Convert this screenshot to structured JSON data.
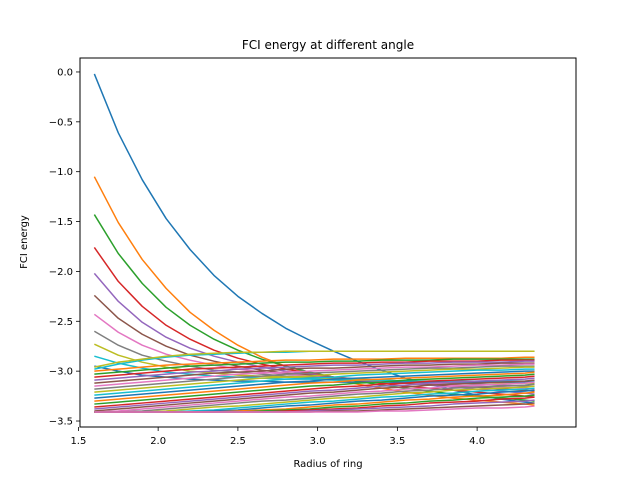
{
  "chart_data": {
    "type": "line",
    "title": "FCI energy at different angle",
    "xlabel": "Radius of ring",
    "ylabel": "FCI energy",
    "xlim": [
      1.51,
      4.62
    ],
    "ylim": [
      -3.56,
      0.14
    ],
    "xticks": [
      1.5,
      2.0,
      2.5,
      3.0,
      3.5,
      4.0
    ],
    "xtick_labels": [
      "1.5",
      "2.0",
      "2.5",
      "3.0",
      "3.5",
      "4.0"
    ],
    "yticks": [
      0.0,
      -0.5,
      -1.0,
      -1.5,
      -2.0,
      -2.5,
      -3.0,
      -3.5
    ],
    "ytick_labels": [
      "0.0",
      "−0.5",
      "−1.0",
      "−1.5",
      "−2.0",
      "−2.5",
      "−3.0",
      "−3.5"
    ],
    "grid": false,
    "x": [
      1.6,
      1.75,
      1.9,
      2.05,
      2.2,
      2.35,
      2.5,
      2.65,
      2.8,
      2.95,
      3.1,
      3.25,
      3.4,
      3.55,
      3.7,
      3.85,
      4.0,
      4.15,
      4.3,
      4.36
    ],
    "series": [
      {
        "values": [
          -0.02,
          -0.61,
          -1.08,
          -1.47,
          -1.78,
          -2.04,
          -2.25,
          -2.42,
          -2.57,
          -2.69,
          -2.8,
          -2.9,
          -2.99,
          -3.07,
          -3.13,
          -3.19,
          -3.24,
          -3.28,
          -3.31,
          -3.32
        ],
        "color": "#1f77b4"
      },
      {
        "values": [
          -1.05,
          -1.51,
          -1.88,
          -2.17,
          -2.41,
          -2.59,
          -2.74,
          -2.86,
          -2.95,
          -3.02,
          -3.08,
          -3.13,
          -3.17,
          -3.21,
          -3.24,
          -3.27,
          -3.29,
          -3.31,
          -3.33,
          -3.34
        ],
        "color": "#ff7f0e"
      },
      {
        "values": [
          -1.43,
          -1.82,
          -2.12,
          -2.36,
          -2.54,
          -2.68,
          -2.79,
          -2.88,
          -2.95,
          -3.01,
          -3.06,
          -3.1,
          -3.14,
          -3.17,
          -3.2,
          -3.23,
          -3.25,
          -3.27,
          -3.29,
          -3.3
        ],
        "color": "#2ca02c"
      },
      {
        "values": [
          -1.76,
          -2.1,
          -2.35,
          -2.54,
          -2.68,
          -2.79,
          -2.87,
          -2.93,
          -2.98,
          -3.02,
          -3.06,
          -3.09,
          -3.12,
          -3.15,
          -3.17,
          -3.19,
          -3.21,
          -3.23,
          -3.25,
          -3.26
        ],
        "color": "#d62728"
      },
      {
        "values": [
          -2.02,
          -2.3,
          -2.51,
          -2.66,
          -2.77,
          -2.85,
          -2.91,
          -2.96,
          -3.0,
          -3.03,
          -3.06,
          -3.08,
          -3.1,
          -3.12,
          -3.14,
          -3.16,
          -3.18,
          -3.2,
          -3.22,
          -3.23
        ],
        "color": "#9467bd"
      },
      {
        "values": [
          -2.24,
          -2.47,
          -2.63,
          -2.75,
          -2.84,
          -2.9,
          -2.95,
          -2.99,
          -3.02,
          -3.04,
          -3.06,
          -3.08,
          -3.1,
          -3.12,
          -3.13,
          -3.15,
          -3.16,
          -3.18,
          -3.19,
          -3.2
        ],
        "color": "#8c564b"
      },
      {
        "values": [
          -2.43,
          -2.61,
          -2.74,
          -2.83,
          -2.89,
          -2.94,
          -2.98,
          -3.01,
          -3.03,
          -3.05,
          -3.07,
          -3.09,
          -3.1,
          -3.11,
          -3.12,
          -3.14,
          -3.15,
          -3.16,
          -3.17,
          -3.18
        ],
        "color": "#e377c2"
      },
      {
        "values": [
          -2.6,
          -2.74,
          -2.84,
          -2.9,
          -2.95,
          -2.99,
          -3.01,
          -3.03,
          -3.05,
          -3.06,
          -3.07,
          -3.08,
          -3.09,
          -3.1,
          -3.11,
          -3.12,
          -3.13,
          -3.14,
          -3.15,
          -3.15
        ],
        "color": "#7f7f7f"
      },
      {
        "values": [
          -2.73,
          -2.84,
          -2.91,
          -2.96,
          -3.0,
          -3.02,
          -3.04,
          -3.05,
          -3.06,
          -3.07,
          -3.08,
          -3.08,
          -3.09,
          -3.1,
          -3.1,
          -3.11,
          -3.11,
          -3.12,
          -3.12,
          -3.12
        ],
        "color": "#bcbd22"
      },
      {
        "values": [
          -2.85,
          -2.92,
          -2.97,
          -3.01,
          -3.03,
          -3.05,
          -3.06,
          -3.07,
          -3.08,
          -3.08,
          -3.09,
          -3.09,
          -3.09,
          -3.1,
          -3.1,
          -3.1,
          -3.1,
          -3.1,
          -3.1,
          -3.1
        ],
        "color": "#17becf"
      },
      {
        "values": [
          -2.95,
          -3.0,
          -3.04,
          -3.06,
          -3.08,
          -3.09,
          -3.1,
          -3.1,
          -3.11,
          -3.11,
          -3.11,
          -3.11,
          -3.11,
          -3.11,
          -3.11,
          -3.11,
          -3.11,
          -3.11,
          -3.11,
          -3.11
        ],
        "color": "#1f77b4"
      },
      {
        "values": [
          -3.0,
          -2.98,
          -2.96,
          -2.94,
          -2.93,
          -2.92,
          -2.91,
          -2.9,
          -2.89,
          -2.89,
          -2.88,
          -2.88,
          -2.88,
          -2.87,
          -2.87,
          -2.87,
          -2.87,
          -2.87,
          -2.86,
          -2.86
        ],
        "color": "#ff7f0e"
      },
      {
        "values": [
          -3.03,
          -3.01,
          -2.99,
          -2.97,
          -2.95,
          -2.94,
          -2.93,
          -2.92,
          -2.91,
          -2.91,
          -2.9,
          -2.9,
          -2.89,
          -2.89,
          -2.89,
          -2.88,
          -2.88,
          -2.88,
          -2.88,
          -2.88
        ],
        "color": "#2ca02c"
      },
      {
        "values": [
          -3.06,
          -3.04,
          -3.02,
          -3.0,
          -2.98,
          -2.97,
          -2.96,
          -2.95,
          -2.94,
          -2.93,
          -2.92,
          -2.92,
          -2.91,
          -2.91,
          -2.9,
          -2.9,
          -2.9,
          -2.89,
          -2.89,
          -2.89
        ],
        "color": "#d62728"
      },
      {
        "values": [
          -3.09,
          -3.07,
          -3.05,
          -3.03,
          -3.01,
          -3.0,
          -2.98,
          -2.97,
          -2.96,
          -2.95,
          -2.94,
          -2.94,
          -2.93,
          -2.92,
          -2.92,
          -2.91,
          -2.91,
          -2.91,
          -2.9,
          -2.9
        ],
        "color": "#9467bd"
      },
      {
        "values": [
          -3.12,
          -3.1,
          -3.08,
          -3.06,
          -3.04,
          -3.02,
          -3.01,
          -3.0,
          -2.98,
          -2.97,
          -2.97,
          -2.96,
          -2.95,
          -2.94,
          -2.94,
          -2.93,
          -2.93,
          -2.92,
          -2.92,
          -2.92
        ],
        "color": "#8c564b"
      },
      {
        "values": [
          -3.15,
          -3.13,
          -3.11,
          -3.09,
          -3.07,
          -3.05,
          -3.03,
          -3.02,
          -3.01,
          -3.0,
          -2.99,
          -2.98,
          -2.97,
          -2.96,
          -2.96,
          -2.95,
          -2.94,
          -2.94,
          -2.93,
          -2.93
        ],
        "color": "#e377c2"
      },
      {
        "values": [
          -3.18,
          -3.16,
          -3.14,
          -3.12,
          -3.1,
          -3.08,
          -3.06,
          -3.05,
          -3.03,
          -3.02,
          -3.01,
          -3.0,
          -2.99,
          -2.98,
          -2.97,
          -2.97,
          -2.96,
          -2.95,
          -2.95,
          -2.95
        ],
        "color": "#7f7f7f"
      },
      {
        "values": [
          -3.21,
          -3.19,
          -3.17,
          -3.15,
          -3.13,
          -3.11,
          -3.09,
          -3.07,
          -3.06,
          -3.05,
          -3.03,
          -3.02,
          -3.01,
          -3.0,
          -2.99,
          -2.98,
          -2.98,
          -2.97,
          -2.96,
          -2.96
        ],
        "color": "#bcbd22"
      },
      {
        "values": [
          -3.24,
          -3.22,
          -3.2,
          -3.18,
          -3.16,
          -3.14,
          -3.12,
          -3.1,
          -3.08,
          -3.07,
          -3.06,
          -3.04,
          -3.03,
          -3.02,
          -3.01,
          -3.0,
          -2.99,
          -2.99,
          -2.98,
          -2.98
        ],
        "color": "#17becf"
      },
      {
        "values": [
          -3.27,
          -3.25,
          -3.23,
          -3.21,
          -3.19,
          -3.17,
          -3.15,
          -3.13,
          -3.11,
          -3.1,
          -3.08,
          -3.07,
          -3.06,
          -3.05,
          -3.04,
          -3.03,
          -3.02,
          -3.01,
          -3.0,
          -3.0
        ],
        "color": "#1f77b4"
      },
      {
        "values": [
          -3.3,
          -3.28,
          -3.26,
          -3.24,
          -3.22,
          -3.2,
          -3.18,
          -3.16,
          -3.14,
          -3.12,
          -3.11,
          -3.09,
          -3.08,
          -3.07,
          -3.06,
          -3.05,
          -3.04,
          -3.03,
          -3.02,
          -3.01
        ],
        "color": "#ff7f0e"
      },
      {
        "values": [
          -3.33,
          -3.31,
          -3.29,
          -3.27,
          -3.25,
          -3.23,
          -3.21,
          -3.19,
          -3.17,
          -3.15,
          -3.14,
          -3.12,
          -3.11,
          -3.09,
          -3.08,
          -3.07,
          -3.06,
          -3.05,
          -3.04,
          -3.03
        ],
        "color": "#2ca02c"
      },
      {
        "values": [
          -3.36,
          -3.34,
          -3.32,
          -3.3,
          -3.28,
          -3.26,
          -3.24,
          -3.22,
          -3.2,
          -3.18,
          -3.16,
          -3.15,
          -3.13,
          -3.12,
          -3.1,
          -3.09,
          -3.08,
          -3.07,
          -3.06,
          -3.05
        ],
        "color": "#d62728"
      },
      {
        "values": [
          -3.38,
          -3.36,
          -3.34,
          -3.32,
          -3.3,
          -3.28,
          -3.26,
          -3.24,
          -3.22,
          -3.2,
          -3.19,
          -3.17,
          -3.15,
          -3.14,
          -3.12,
          -3.11,
          -3.1,
          -3.09,
          -3.08,
          -3.07
        ],
        "color": "#9467bd"
      },
      {
        "values": [
          -3.4,
          -3.38,
          -3.36,
          -3.34,
          -3.32,
          -3.3,
          -3.28,
          -3.26,
          -3.24,
          -3.22,
          -3.21,
          -3.19,
          -3.17,
          -3.16,
          -3.14,
          -3.13,
          -3.12,
          -3.11,
          -3.1,
          -3.09
        ],
        "color": "#8c564b"
      },
      {
        "values": [
          -3.41,
          -3.4,
          -3.38,
          -3.36,
          -3.34,
          -3.32,
          -3.3,
          -3.28,
          -3.26,
          -3.25,
          -3.23,
          -3.21,
          -3.2,
          -3.18,
          -3.17,
          -3.15,
          -3.14,
          -3.13,
          -3.12,
          -3.11
        ],
        "color": "#e377c2"
      },
      {
        "values": [
          -3.41,
          -3.41,
          -3.4,
          -3.38,
          -3.36,
          -3.34,
          -3.32,
          -3.3,
          -3.29,
          -3.27,
          -3.25,
          -3.23,
          -3.22,
          -3.2,
          -3.19,
          -3.17,
          -3.16,
          -3.15,
          -3.14,
          -3.13
        ],
        "color": "#7f7f7f"
      },
      {
        "values": [
          -3.41,
          -3.41,
          -3.41,
          -3.4,
          -3.38,
          -3.36,
          -3.35,
          -3.33,
          -3.31,
          -3.29,
          -3.27,
          -3.26,
          -3.24,
          -3.22,
          -3.21,
          -3.19,
          -3.18,
          -3.17,
          -3.16,
          -3.15
        ],
        "color": "#bcbd22"
      },
      {
        "values": [
          -3.41,
          -3.41,
          -3.41,
          -3.41,
          -3.4,
          -3.39,
          -3.37,
          -3.35,
          -3.33,
          -3.31,
          -3.3,
          -3.28,
          -3.26,
          -3.25,
          -3.23,
          -3.22,
          -3.2,
          -3.19,
          -3.18,
          -3.17
        ],
        "color": "#17becf"
      },
      {
        "values": [
          -3.41,
          -3.41,
          -3.41,
          -3.41,
          -3.41,
          -3.4,
          -3.39,
          -3.37,
          -3.35,
          -3.34,
          -3.32,
          -3.3,
          -3.29,
          -3.27,
          -3.25,
          -3.24,
          -3.23,
          -3.21,
          -3.2,
          -3.19
        ],
        "color": "#1f77b4"
      },
      {
        "values": [
          -3.41,
          -3.41,
          -3.41,
          -3.41,
          -3.41,
          -3.41,
          -3.4,
          -3.39,
          -3.38,
          -3.36,
          -3.34,
          -3.33,
          -3.31,
          -3.29,
          -3.28,
          -3.26,
          -3.25,
          -3.24,
          -3.22,
          -3.21
        ],
        "color": "#ff7f0e"
      },
      {
        "values": [
          -3.41,
          -3.41,
          -3.41,
          -3.41,
          -3.41,
          -3.41,
          -3.41,
          -3.4,
          -3.39,
          -3.38,
          -3.36,
          -3.35,
          -3.33,
          -3.32,
          -3.3,
          -3.29,
          -3.27,
          -3.26,
          -3.25,
          -3.24
        ],
        "color": "#2ca02c"
      },
      {
        "values": [
          -3.41,
          -3.41,
          -3.41,
          -3.41,
          -3.41,
          -3.41,
          -3.41,
          -3.41,
          -3.4,
          -3.39,
          -3.38,
          -3.37,
          -3.35,
          -3.34,
          -3.32,
          -3.31,
          -3.3,
          -3.28,
          -3.27,
          -3.26
        ],
        "color": "#d62728"
      },
      {
        "values": [
          -3.41,
          -3.41,
          -3.41,
          -3.41,
          -3.41,
          -3.41,
          -3.41,
          -3.41,
          -3.41,
          -3.4,
          -3.39,
          -3.38,
          -3.37,
          -3.36,
          -3.35,
          -3.33,
          -3.32,
          -3.31,
          -3.3,
          -3.29
        ],
        "color": "#9467bd"
      },
      {
        "values": [
          -3.41,
          -3.41,
          -3.41,
          -3.41,
          -3.41,
          -3.41,
          -3.41,
          -3.41,
          -3.41,
          -3.41,
          -3.4,
          -3.4,
          -3.39,
          -3.38,
          -3.37,
          -3.36,
          -3.35,
          -3.34,
          -3.33,
          -3.32
        ],
        "color": "#8c564b"
      },
      {
        "values": [
          -3.41,
          -3.41,
          -3.41,
          -3.41,
          -3.41,
          -3.41,
          -3.41,
          -3.41,
          -3.41,
          -3.41,
          -3.41,
          -3.41,
          -3.4,
          -3.4,
          -3.39,
          -3.38,
          -3.37,
          -3.37,
          -3.36,
          -3.35
        ],
        "color": "#e377c2"
      },
      {
        "values": [
          -2.98,
          -2.93,
          -2.89,
          -2.86,
          -2.84,
          -2.83,
          -2.82,
          -2.81,
          -2.81,
          -2.8,
          -2.8,
          -2.8,
          -2.8,
          -2.8,
          -2.8,
          -2.8,
          -2.8,
          -2.8,
          -2.8,
          -2.8
        ],
        "color": "#17becf"
      },
      {
        "values": [
          -2.96,
          -2.91,
          -2.88,
          -2.85,
          -2.83,
          -2.82,
          -2.81,
          -2.81,
          -2.8,
          -2.8,
          -2.8,
          -2.8,
          -2.8,
          -2.8,
          -2.8,
          -2.8,
          -2.8,
          -2.8,
          -2.8,
          -2.8
        ],
        "color": "#bcbd22"
      }
    ]
  }
}
